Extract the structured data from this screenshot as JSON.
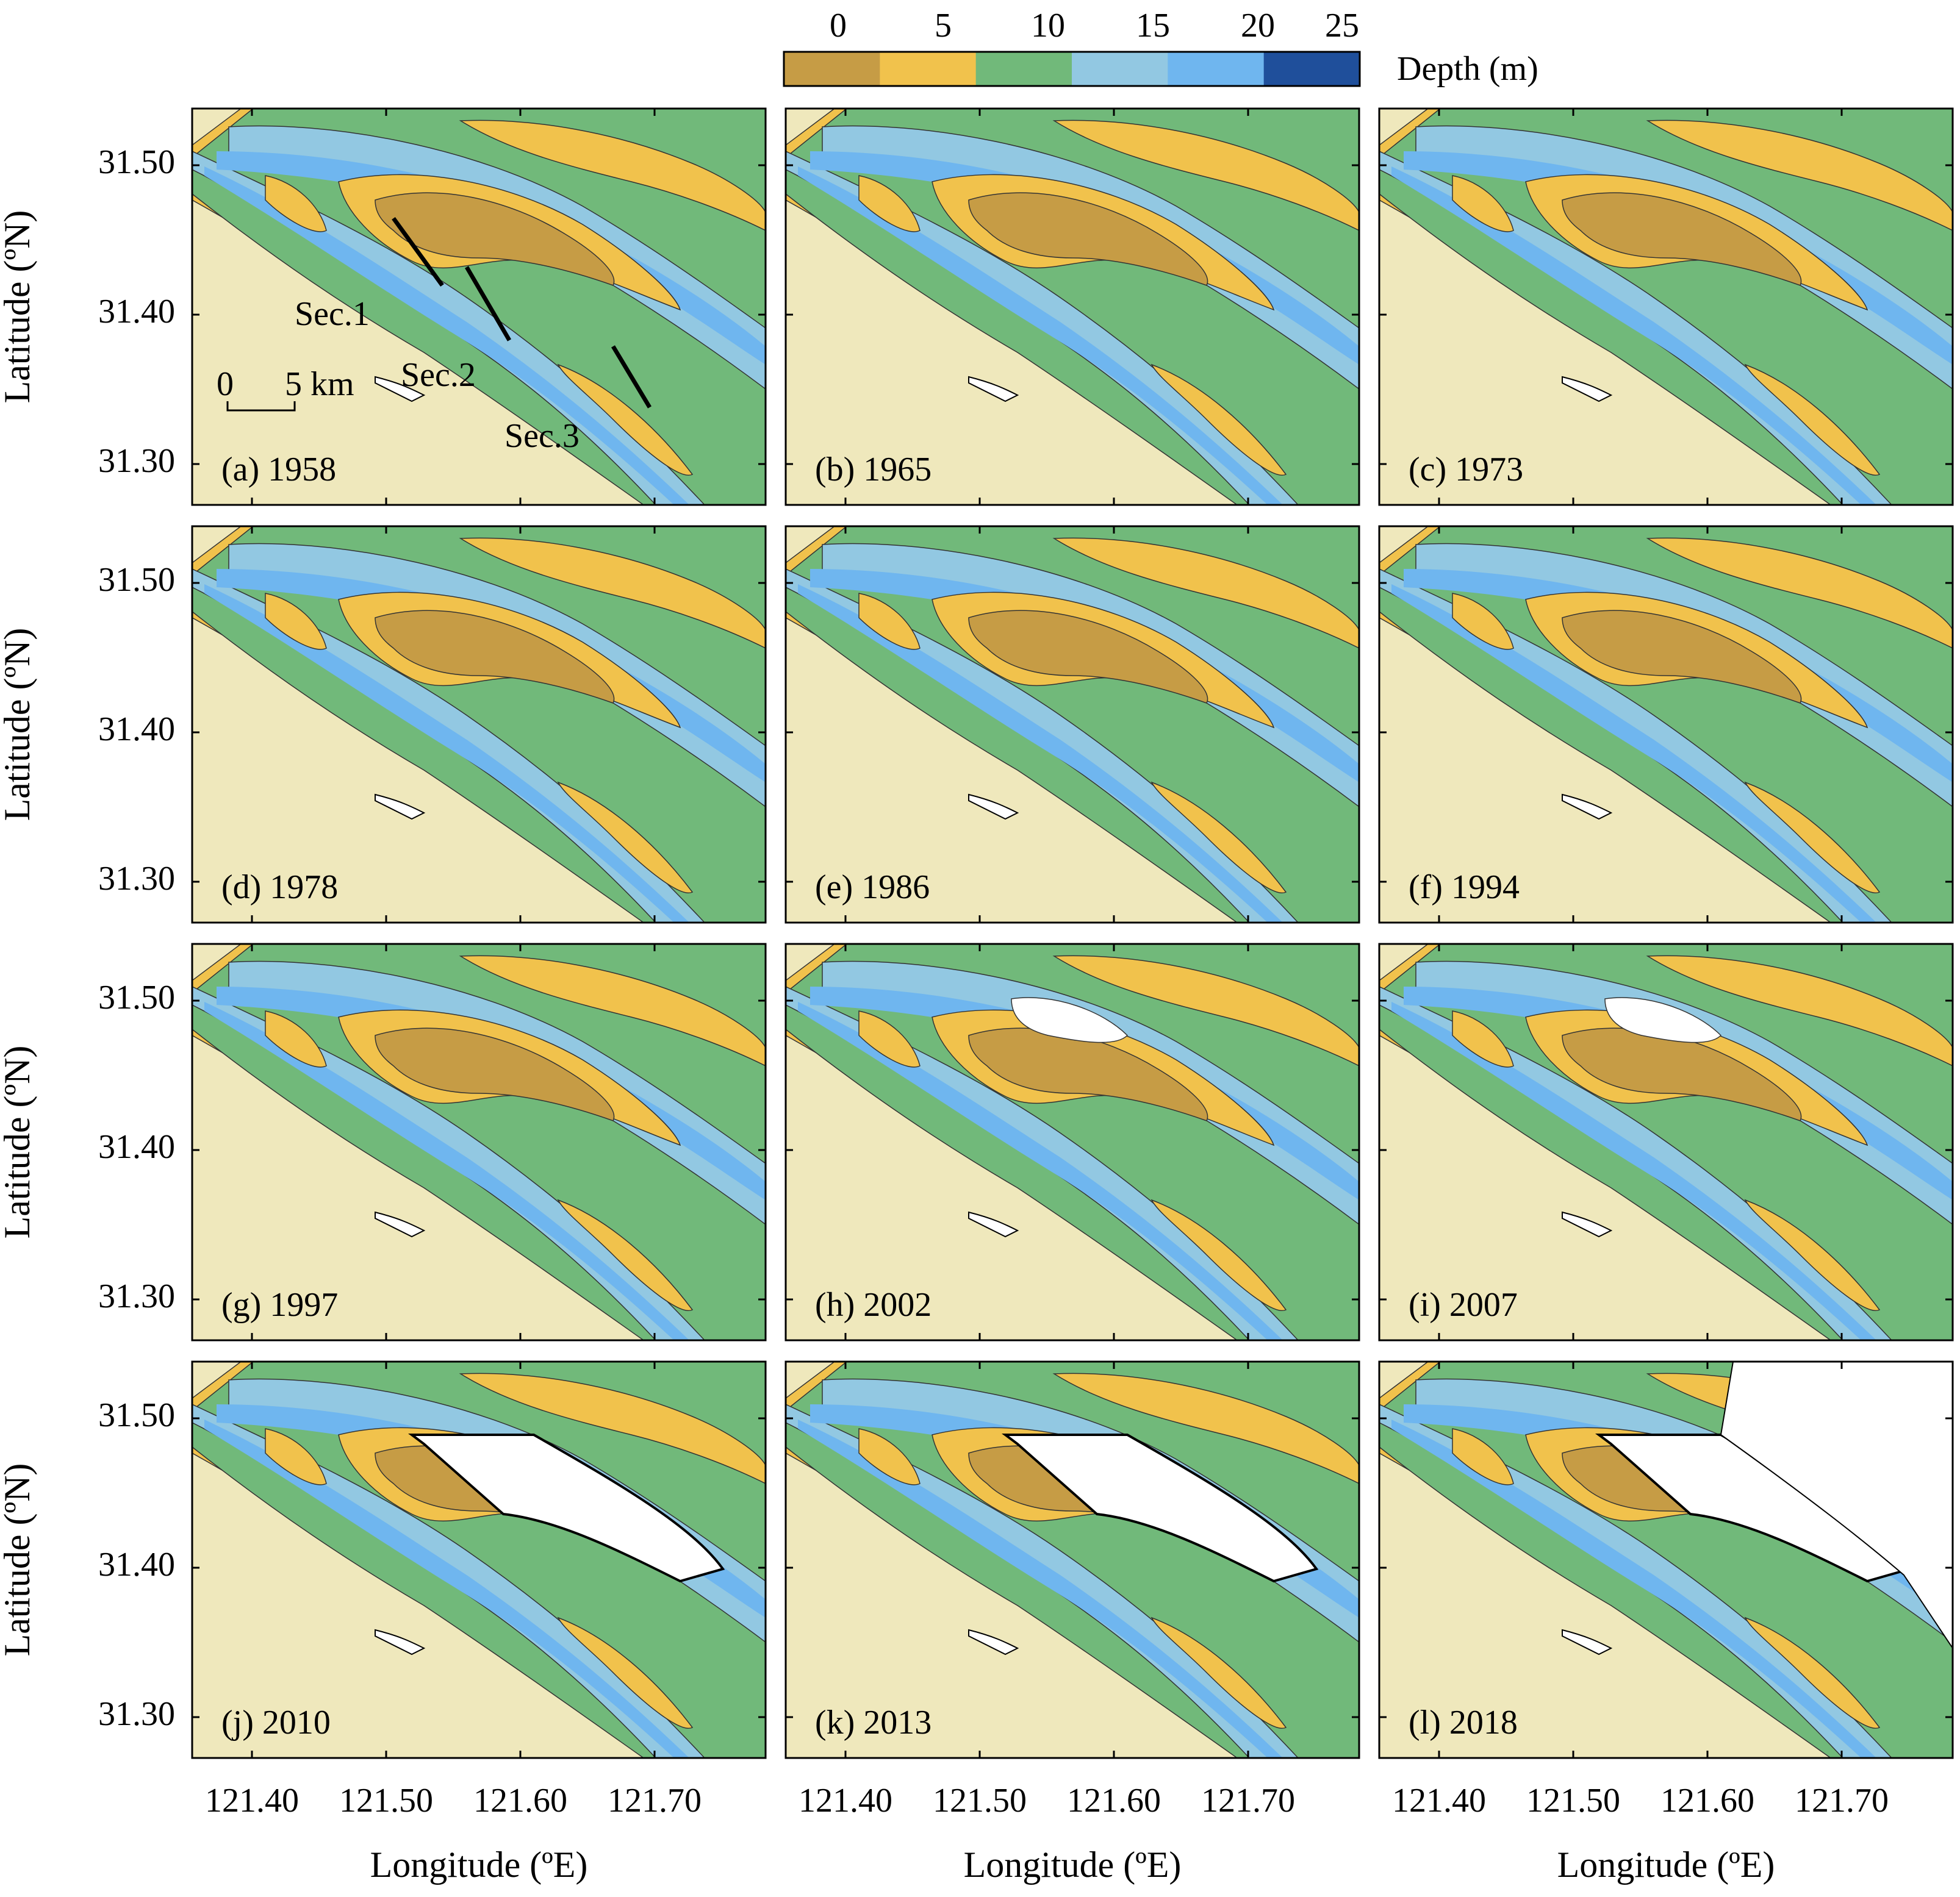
{
  "colorbar": {
    "label": "Depth (m)",
    "ticks": [
      "0",
      "5",
      "10",
      "15",
      "20",
      "25"
    ],
    "bins": [
      {
        "range": "< 0",
        "color": "#c69c45"
      },
      {
        "range": "0-5",
        "color": "#f1c24c"
      },
      {
        "range": "5-10",
        "color": "#71b97a"
      },
      {
        "range": "10-15",
        "color": "#92c8e2"
      },
      {
        "range": "15-20",
        "color": "#6fb6ef"
      },
      {
        "range": "20-25",
        "color": "#1f4f9b"
      }
    ]
  },
  "colors": {
    "land": "#efe8bc",
    "reclaimed": "#ffffff",
    "frame": "#000000"
  },
  "axes": {
    "ylabel": "Latitude (ºN)",
    "xlabel": "Longitude (ºE)",
    "yticks": [
      "31.50",
      "31.40",
      "31.30"
    ],
    "xticks": [
      "121.40",
      "121.50",
      "121.60",
      "121.70"
    ]
  },
  "panels": [
    {
      "label": "(a) 1958",
      "year": 1958
    },
    {
      "label": "(b) 1965",
      "year": 1965
    },
    {
      "label": "(c) 1973",
      "year": 1973
    },
    {
      "label": "(d) 1978",
      "year": 1978
    },
    {
      "label": "(e) 1986",
      "year": 1986
    },
    {
      "label": "(f) 1994",
      "year": 1994
    },
    {
      "label": "(g) 1997",
      "year": 1997
    },
    {
      "label": "(h) 2002",
      "year": 2002
    },
    {
      "label": "(i) 2007",
      "year": 2007
    },
    {
      "label": "(j) 2010",
      "year": 2010
    },
    {
      "label": "(k) 2013",
      "year": 2013
    },
    {
      "label": "(l) 2018",
      "year": 2018
    }
  ],
  "annotations": {
    "sections": [
      "Sec.1",
      "Sec.2",
      "Sec.3"
    ],
    "scalebar": {
      "zero": "0",
      "label": "5 km"
    }
  }
}
